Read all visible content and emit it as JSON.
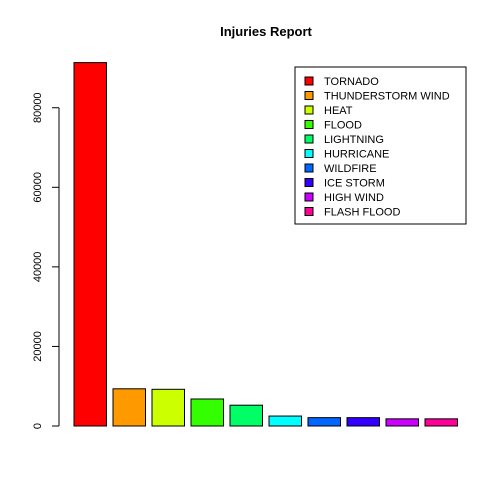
{
  "chart_data": {
    "type": "bar",
    "title": "Injuries Report",
    "xlabel": "",
    "ylabel": "",
    "ylim": [
      0,
      92000
    ],
    "yticks": [
      0,
      20000,
      40000,
      60000,
      80000
    ],
    "categories": [
      "TORNADO",
      "THUNDERSTORM WIND",
      "HEAT",
      "FLOOD",
      "LIGHTNING",
      "HURRICANE",
      "WILDFIRE",
      "ICE STORM",
      "HIGH WIND",
      "FLASH FLOOD"
    ],
    "values": [
      91346,
      9353,
      9224,
      6789,
      5230,
      2500,
      2100,
      2100,
      1800,
      1800
    ],
    "colors": [
      "#FF0000",
      "#FF9900",
      "#CCFF00",
      "#33FF00",
      "#00FF66",
      "#00FFFF",
      "#0066FF",
      "#3300FF",
      "#CC00FF",
      "#FF0099"
    ],
    "grid": false,
    "legend_position": "top-right"
  }
}
